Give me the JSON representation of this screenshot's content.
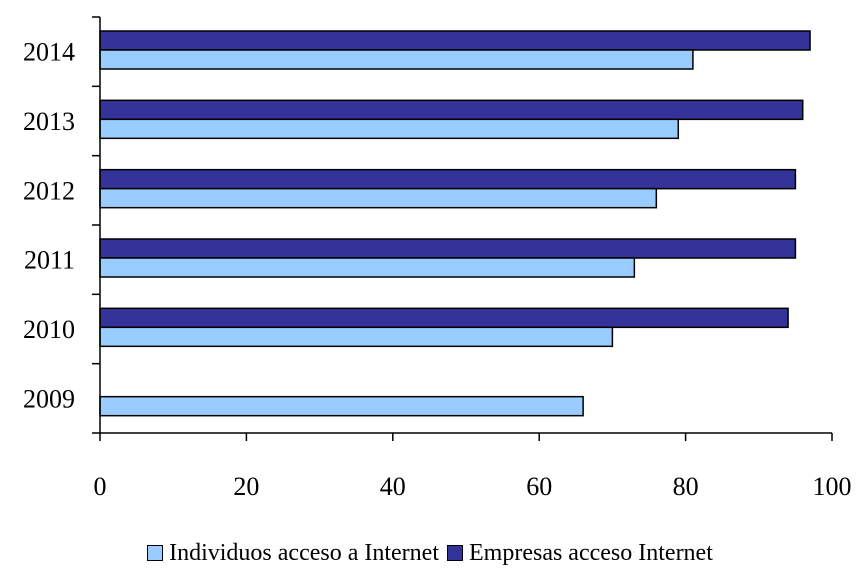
{
  "chart_data": {
    "type": "bar",
    "orientation": "horizontal",
    "title": "",
    "xlabel": "",
    "ylabel": "",
    "categories": [
      "2009",
      "2010",
      "2011",
      "2012",
      "2013",
      "2014"
    ],
    "series": [
      {
        "name": "Individuos acceso a Internet",
        "color": "#99ccff",
        "values": [
          66,
          70,
          73,
          76,
          79,
          81
        ]
      },
      {
        "name": "Empresas acceso Internet",
        "color": "#333399",
        "values": [
          null,
          94,
          95,
          95,
          96,
          97
        ]
      }
    ],
    "xlim": [
      0,
      100
    ],
    "xticks": [
      "0",
      "20",
      "40",
      "60",
      "80",
      "100"
    ],
    "grid": false,
    "legend_position": "bottom"
  }
}
